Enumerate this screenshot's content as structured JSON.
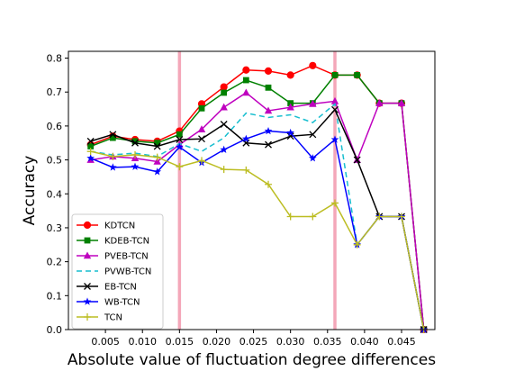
{
  "chart_data": {
    "type": "line",
    "xlabel": "Absolute value of fluctuation degree differences",
    "ylabel": "Accuracy",
    "xlim": [
      0.0,
      0.0495
    ],
    "ylim": [
      0.0,
      0.82
    ],
    "xticks": [
      {
        "value": 0.005,
        "label": "0.005"
      },
      {
        "value": 0.01,
        "label": "0.010"
      },
      {
        "value": 0.015,
        "label": "0.015"
      },
      {
        "value": 0.02,
        "label": "0.020"
      },
      {
        "value": 0.025,
        "label": "0.025"
      },
      {
        "value": 0.03,
        "label": "0.030"
      },
      {
        "value": 0.035,
        "label": "0.035"
      },
      {
        "value": 0.04,
        "label": "0.040"
      },
      {
        "value": 0.045,
        "label": "0.045"
      }
    ],
    "yticks": [
      {
        "value": 0.0,
        "label": "0.0"
      },
      {
        "value": 0.1,
        "label": "0.1"
      },
      {
        "value": 0.2,
        "label": "0.2"
      },
      {
        "value": 0.3,
        "label": "0.3"
      },
      {
        "value": 0.4,
        "label": "0.4"
      },
      {
        "value": 0.5,
        "label": "0.5"
      },
      {
        "value": 0.6,
        "label": "0.6"
      },
      {
        "value": 0.7,
        "label": "0.7"
      },
      {
        "value": 0.8,
        "label": "0.8"
      }
    ],
    "vlines": [
      {
        "x": 0.015,
        "color": "#f4a7b9"
      },
      {
        "x": 0.036,
        "color": "#f4a7b9"
      }
    ],
    "x": [
      0.003,
      0.006,
      0.009,
      0.012,
      0.015,
      0.018,
      0.021,
      0.024,
      0.027,
      0.03,
      0.033,
      0.036,
      0.039,
      0.042,
      0.045,
      0.048
    ],
    "legend_position": "center-left",
    "grid": false,
    "series": [
      {
        "name": "KDTCN",
        "color": "#ff0000",
        "marker": "circle",
        "dash": "",
        "values": [
          0.545,
          0.57,
          0.56,
          0.555,
          0.585,
          0.665,
          0.715,
          0.765,
          0.762,
          0.75,
          0.778,
          0.75,
          0.75,
          0.667,
          0.667,
          0.0
        ]
      },
      {
        "name": "KDEB-TCN",
        "color": "#008000",
        "marker": "square",
        "dash": "",
        "values": [
          0.54,
          0.565,
          0.555,
          0.55,
          0.575,
          0.652,
          0.698,
          0.735,
          0.713,
          0.667,
          0.667,
          0.75,
          0.75,
          0.667,
          0.667,
          0.0
        ]
      },
      {
        "name": "PVEB-TCN",
        "color": "#bf00bf",
        "marker": "triangle",
        "dash": "",
        "values": [
          0.5,
          0.51,
          0.505,
          0.495,
          0.545,
          0.59,
          0.655,
          0.698,
          0.645,
          0.655,
          0.665,
          0.673,
          0.5,
          0.667,
          0.667,
          0.0
        ]
      },
      {
        "name": "PVWB-TCN",
        "color": "#17becf",
        "marker": "none",
        "dash": "6,4",
        "values": [
          0.525,
          0.515,
          0.52,
          0.51,
          0.548,
          0.525,
          0.565,
          0.638,
          0.625,
          0.633,
          0.61,
          0.665,
          0.25,
          0.333,
          0.333,
          0.0
        ]
      },
      {
        "name": "EB-TCN",
        "color": "#000000",
        "marker": "x",
        "dash": "",
        "values": [
          0.555,
          0.575,
          0.55,
          0.54,
          0.56,
          0.562,
          0.605,
          0.55,
          0.545,
          0.57,
          0.575,
          0.648,
          0.5,
          0.333,
          0.333,
          0.0
        ]
      },
      {
        "name": "WB-TCN",
        "color": "#0000ff",
        "marker": "star",
        "dash": "",
        "values": [
          0.505,
          0.478,
          0.48,
          0.465,
          0.538,
          0.492,
          0.53,
          0.562,
          0.585,
          0.58,
          0.505,
          0.56,
          0.25,
          0.333,
          0.333,
          0.0
        ]
      },
      {
        "name": "TCN",
        "color": "#bcbd22",
        "marker": "plus",
        "dash": "",
        "values": [
          0.525,
          0.51,
          0.515,
          0.508,
          0.48,
          0.498,
          0.472,
          0.47,
          0.428,
          0.333,
          0.333,
          0.373,
          0.25,
          0.333,
          0.333,
          0.0
        ]
      }
    ]
  }
}
